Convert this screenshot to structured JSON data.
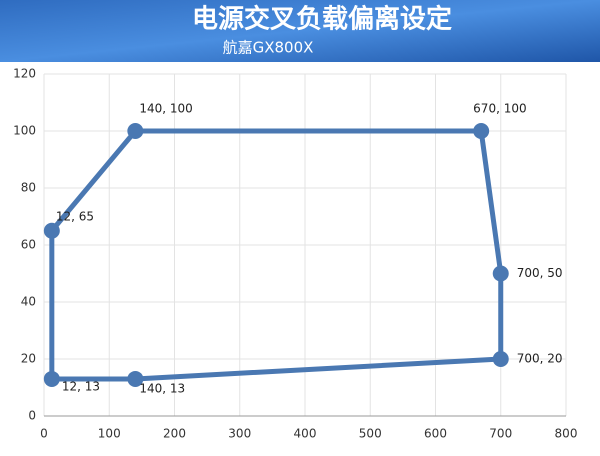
{
  "chart_data": {
    "type": "line",
    "title": "电源交叉负载偏离设定",
    "subtitle": "航嘉GX800X",
    "x": [
      12,
      140,
      670,
      700,
      700,
      140,
      12
    ],
    "values": [
      65,
      100,
      100,
      50,
      20,
      13,
      13
    ],
    "value_labels": [
      "12, 65",
      "140, 100",
      "670, 100",
      "700, 50",
      "700, 20",
      "140, 13",
      "12, 13"
    ],
    "closed": true,
    "color": "#4a78b2",
    "grid": true,
    "xlim": [
      0,
      800
    ],
    "xticks": [
      0,
      100,
      200,
      300,
      400,
      500,
      600,
      700,
      800
    ],
    "ylim": [
      0,
      120
    ],
    "yticks": [
      0,
      20,
      40,
      60,
      80,
      100,
      120
    ]
  }
}
